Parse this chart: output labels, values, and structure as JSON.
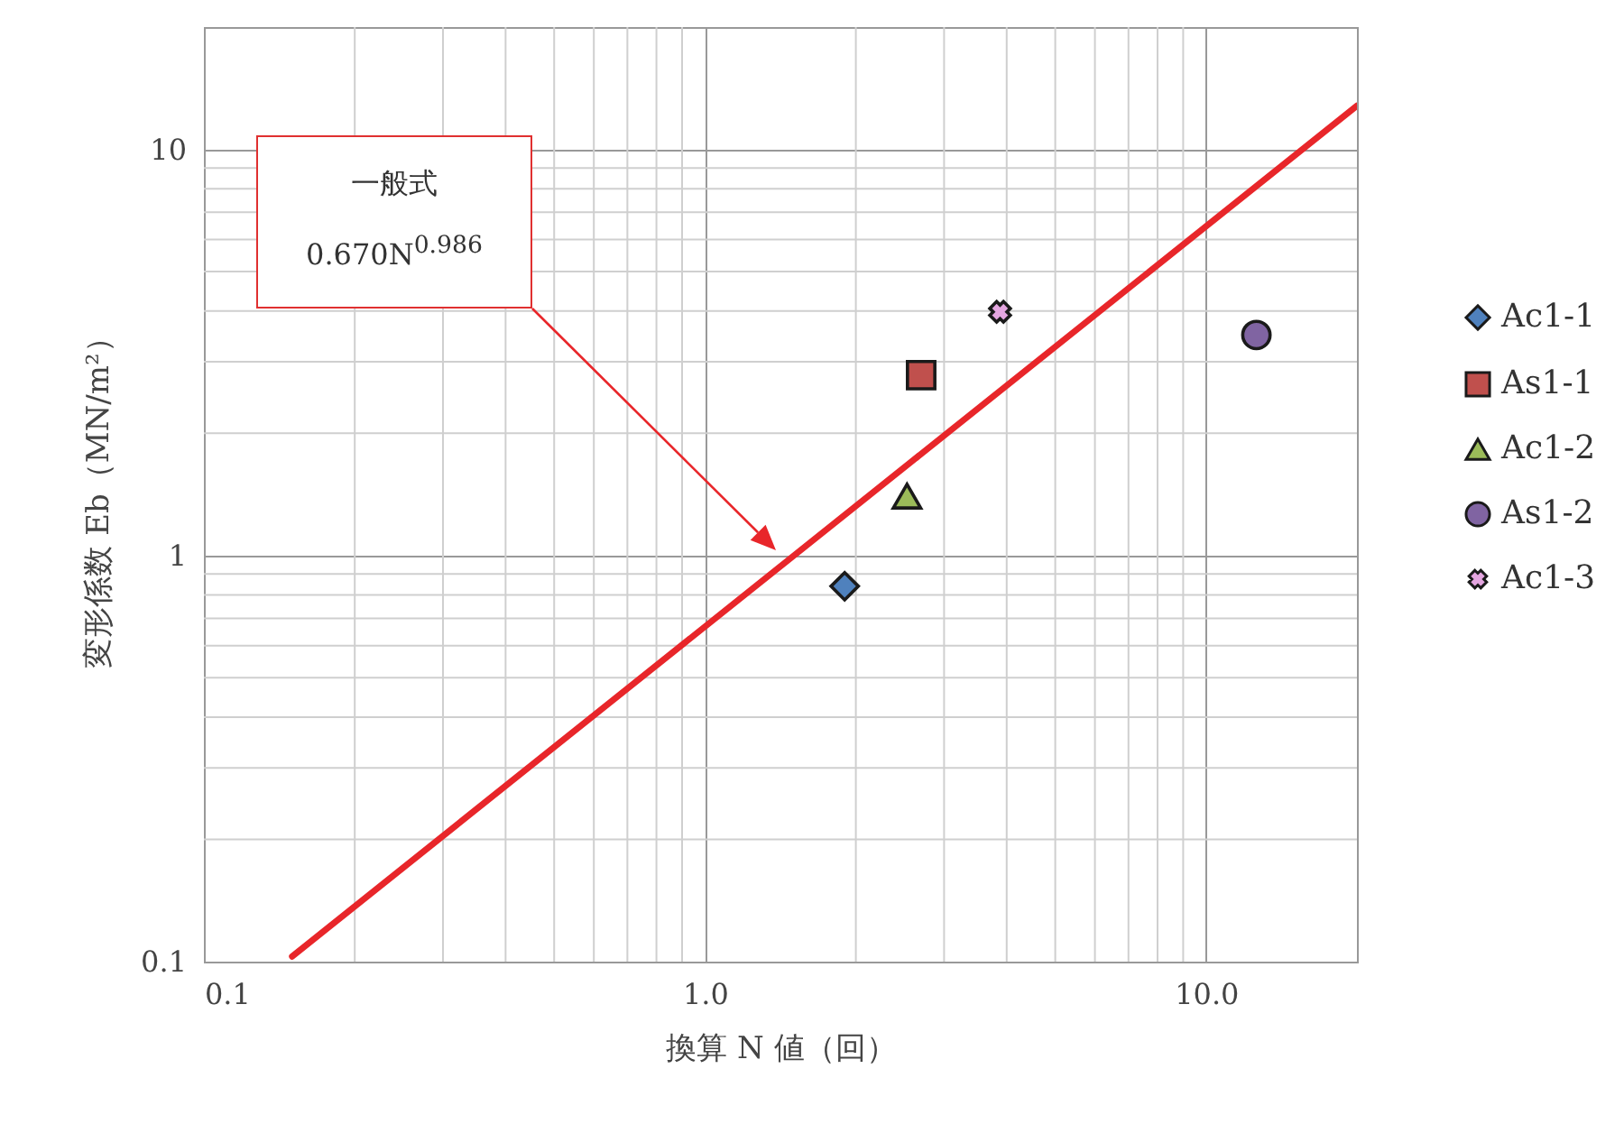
{
  "chart_data": {
    "type": "scatter",
    "xlabel": "換算 N 値（回）",
    "ylabel": "変形係数 Eb（MN/m²）",
    "xlim": [
      0.1,
      20
    ],
    "ylim": [
      0.1,
      20
    ],
    "log": "xy",
    "grid": true,
    "legend": "right",
    "xticks": [
      {
        "value": 0.1,
        "label": "0.1"
      },
      {
        "value": 1,
        "label": "1.0"
      },
      {
        "value": 10,
        "label": "10.0"
      }
    ],
    "yticks": [
      0.1,
      1,
      10
    ],
    "annotations": [
      "一般式",
      "0.670N$^{0.986}$"
    ],
    "series": [
      {
        "name": "Ac1-1",
        "color": "#4f81bd",
        "marker": "diamond",
        "x": [
          1.9
        ],
        "values": [
          0.84
        ]
      },
      {
        "name": "As1-1",
        "color": "#c0504d",
        "marker": "square",
        "x": [
          2.7
        ],
        "values": [
          2.78
        ]
      },
      {
        "name": "Ac1-2",
        "color": "#9bbb59",
        "marker": "triangle",
        "x": [
          2.53
        ],
        "values": [
          1.4
        ]
      },
      {
        "name": "As1-2",
        "color": "#8064a2",
        "marker": "circle",
        "x": [
          12.6
        ],
        "values": [
          3.49
        ]
      },
      {
        "name": "Ac1-3",
        "color": "#e4a6e0",
        "marker": "cross",
        "x": [
          3.88
        ],
        "values": [
          3.98
        ]
      },
      {
        "type": "line",
        "color": "#e8262a",
        "x": [
          0.15,
          20
        ],
        "values": [
          0.103,
          12.8
        ]
      }
    ]
  }
}
